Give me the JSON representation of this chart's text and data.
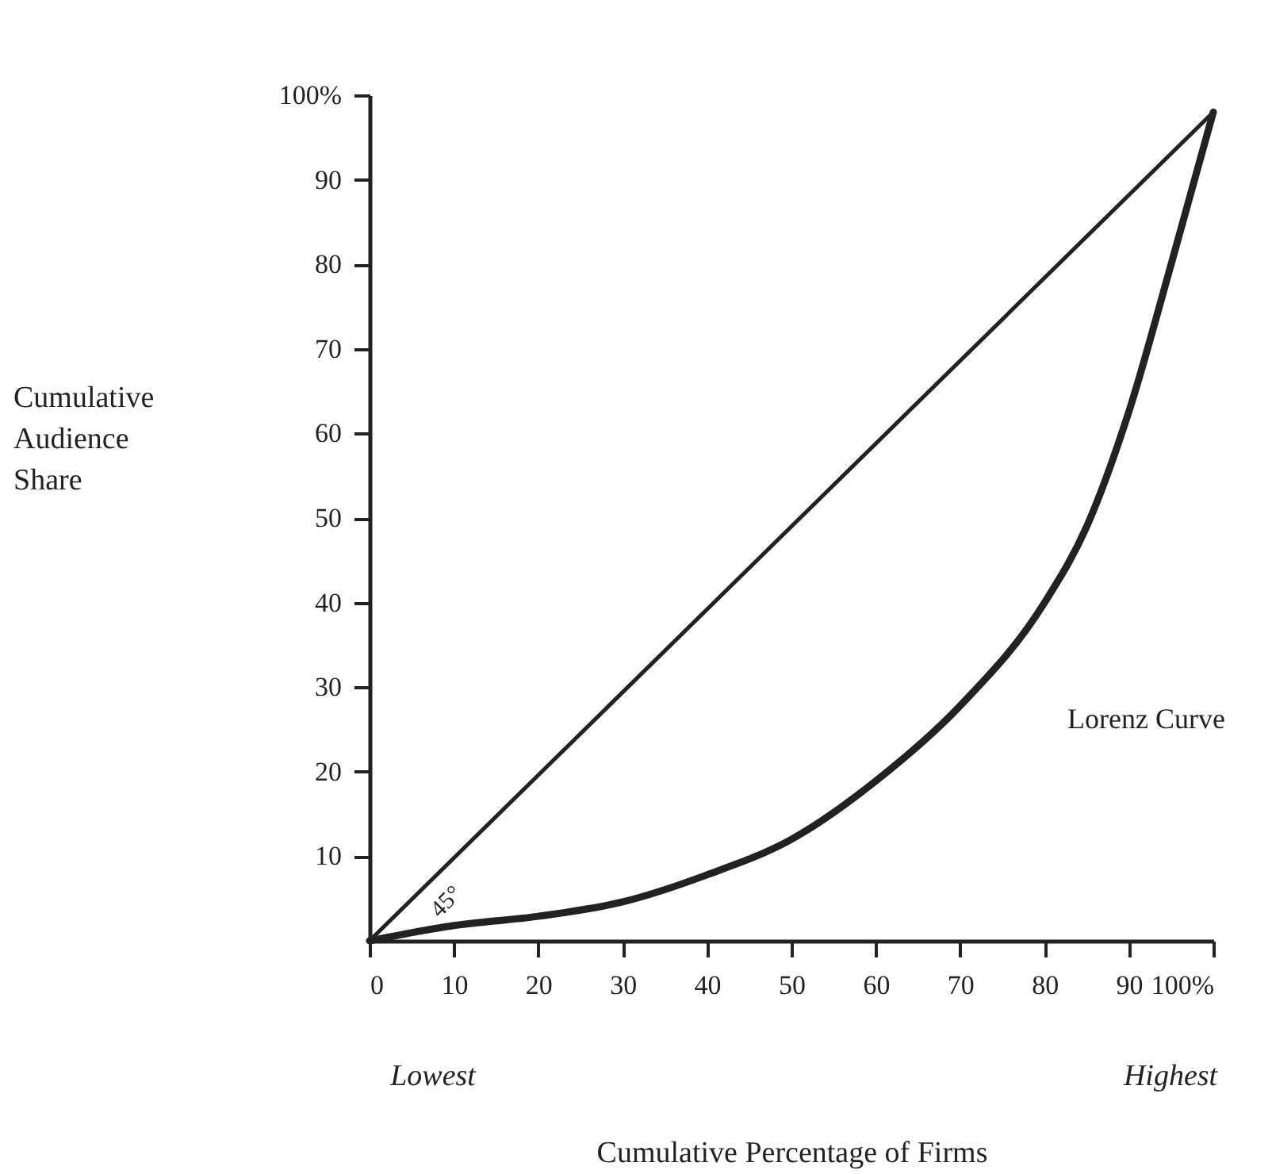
{
  "chart_data": {
    "type": "line",
    "xlabel": "Cumulative Percentage of Firms",
    "ylabel": "Cumulative Audience Share",
    "xlim": [
      0,
      100
    ],
    "ylim": [
      0,
      100
    ],
    "xticks": [
      {
        "value": 0,
        "label": "0"
      },
      10,
      20,
      30,
      40,
      50,
      60,
      70,
      80,
      90,
      {
        "value": 100,
        "label": "100%"
      }
    ],
    "yticks": [
      10,
      20,
      30,
      40,
      50,
      60,
      70,
      80,
      90,
      {
        "value": 100,
        "label": "100%"
      }
    ],
    "series": [
      {
        "color": "#222222",
        "x": [
          0,
          100
        ],
        "values": [
          0,
          98
        ]
      },
      {
        "color": "#222222",
        "x": [
          0,
          10,
          20,
          30,
          40,
          50,
          60,
          70,
          80,
          85,
          90,
          95,
          100
        ],
        "values": [
          0,
          1.8,
          2.9,
          4.6,
          7.8,
          12,
          18.9,
          27.8,
          40,
          49,
          62.6,
          80,
          98
        ]
      }
    ],
    "annotations": [
      "Lorenz Curve",
      "45°",
      "Lowest",
      "Highest"
    ],
    "grid": false,
    "marker": "none",
    "line_style": "solid"
  }
}
